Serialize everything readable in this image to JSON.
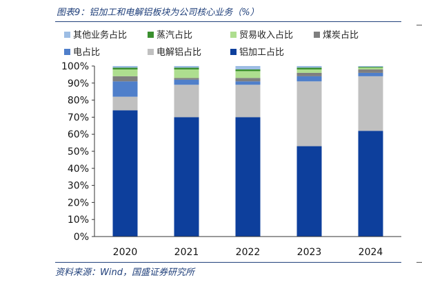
{
  "title": "图表9：铝加工和电解铝板块为公司核心业务（%）",
  "source": "资料来源：Wind，国盛证券研究所",
  "chart_data": {
    "type": "bar",
    "stacked": true,
    "categories": [
      "2020",
      "2021",
      "2022",
      "2023",
      "2024"
    ],
    "ylim": [
      0,
      100
    ],
    "yticks": [
      "0%",
      "10%",
      "20%",
      "30%",
      "40%",
      "50%",
      "60%",
      "70%",
      "80%",
      "90%",
      "100%"
    ],
    "grid": false,
    "series": [
      {
        "name": "铝加工占比",
        "color": "#0d3f9c",
        "values": [
          74,
          70,
          70,
          53,
          62
        ]
      },
      {
        "name": "电解铝占比",
        "color": "#c0c0c0",
        "values": [
          8,
          19,
          19,
          38,
          32
        ]
      },
      {
        "name": "电占比",
        "color": "#4f7fca",
        "values": [
          9,
          3,
          2,
          3,
          2
        ]
      },
      {
        "name": "煤炭占比",
        "color": "#7f7f7f",
        "values": [
          3,
          1,
          2,
          2,
          2
        ]
      },
      {
        "name": "贸易收入占比",
        "color": "#aede8f",
        "values": [
          4,
          5,
          4,
          2,
          1
        ]
      },
      {
        "name": "蒸汽占比",
        "color": "#3a8f2e",
        "values": [
          1,
          1,
          1,
          1,
          0.5
        ]
      },
      {
        "name": "其他业务占比",
        "color": "#9dbde4",
        "values": [
          1,
          1,
          2,
          1,
          0.5
        ]
      }
    ]
  },
  "legend": {
    "order": [
      "其他业务占比",
      "蒸汽占比",
      "贸易收入占比",
      "煤炭占比",
      "电占比",
      "电解铝占比",
      "铝加工占比"
    ]
  }
}
